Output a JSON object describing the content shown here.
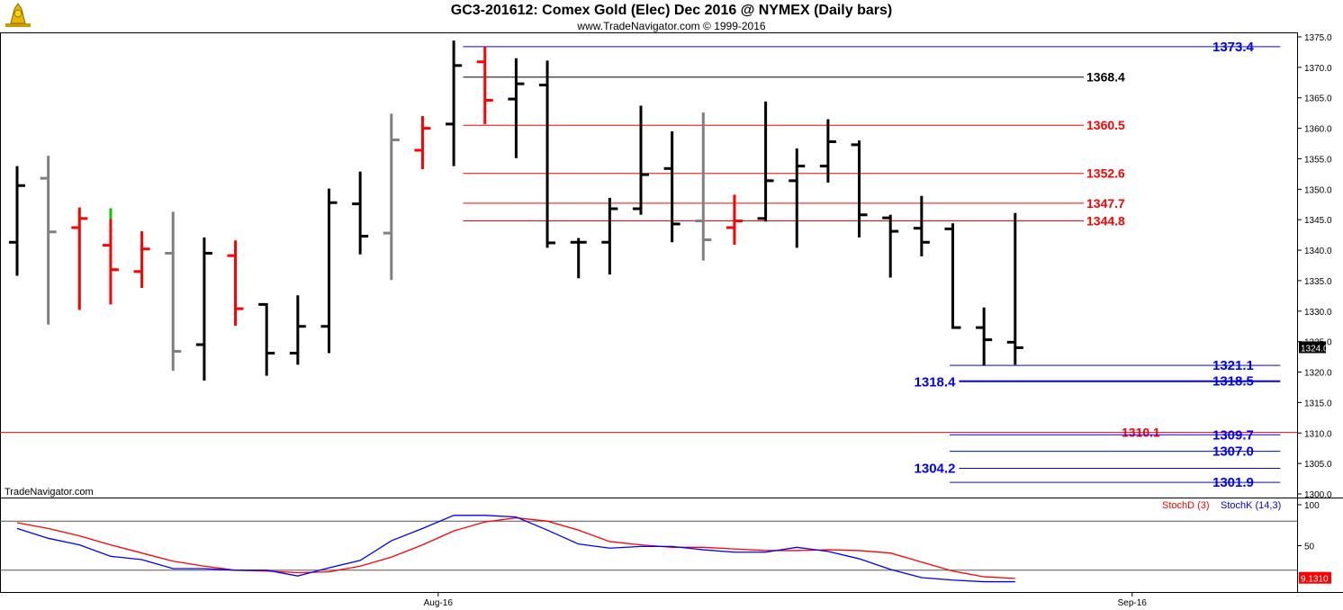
{
  "header": {
    "title": "GC3-201612:  Comex Gold (Elec) Dec 2016 @ NYMEX  (Daily bars)",
    "copyright": "www.TradeNavigator.com © 1999-2016",
    "watermark": "TradeNavigator.com"
  },
  "colors": {
    "up": "#000000",
    "down": "#ff0000",
    "neutral": "#808080",
    "support": "#0000ff",
    "resistance": "#ff0000",
    "mid": "#000000",
    "latest": "#00cc00"
  },
  "chart_data": [
    {
      "type": "bar",
      "subtype": "ohlc",
      "ylim": [
        1298,
        1376
      ],
      "yticks": [
        "1375.0",
        "1370.0",
        "1365.0",
        "1360.0",
        "1355.0",
        "1350.0",
        "1345.0",
        "1340.0",
        "1335.0",
        "1330.0",
        "1325.0",
        "1320.0",
        "1315.0",
        "1310.0",
        "1305.0",
        "1300.0"
      ],
      "xticks": [
        {
          "label": "Aug-16",
          "at": 13.5
        },
        {
          "label": "Sep-16",
          "at": 35.75
        }
      ],
      "last_price": "1324.0",
      "bars": [
        {
          "h": 1353.8,
          "l": 1335.8,
          "o": 1341.3,
          "c": 1350.6,
          "color": "black"
        },
        {
          "h": 1355.5,
          "l": 1327.8,
          "o": 1351.8,
          "c": 1343.0,
          "color": "gray"
        },
        {
          "h": 1347.0,
          "l": 1330.2,
          "o": 1343.7,
          "c": 1345.2,
          "color": "red"
        },
        {
          "h": 1345.1,
          "l": 1331.1,
          "o": 1340.8,
          "c": 1336.8,
          "color": "red",
          "latest_high": true
        },
        {
          "h": 1343.1,
          "l": 1333.8,
          "o": 1336.5,
          "c": 1340.2,
          "color": "red"
        },
        {
          "h": 1346.3,
          "l": 1320.2,
          "o": 1339.5,
          "c": 1323.4,
          "color": "gray"
        },
        {
          "h": 1342.1,
          "l": 1318.6,
          "o": 1324.5,
          "c": 1339.5,
          "color": "black"
        },
        {
          "h": 1341.6,
          "l": 1327.6,
          "o": 1339.1,
          "c": 1330.4,
          "color": "red"
        },
        {
          "h": 1331.3,
          "l": 1319.4,
          "o": 1331.1,
          "c": 1323.1,
          "color": "black"
        },
        {
          "h": 1332.6,
          "l": 1321.2,
          "o": 1323.1,
          "c": 1327.5,
          "color": "black"
        },
        {
          "h": 1350.1,
          "l": 1323.1,
          "o": 1327.5,
          "c": 1347.8,
          "color": "black"
        },
        {
          "h": 1352.9,
          "l": 1339.3,
          "o": 1347.6,
          "c": 1342.3,
          "color": "black"
        },
        {
          "h": 1362.4,
          "l": 1335.1,
          "o": 1342.8,
          "c": 1358.1,
          "color": "gray"
        },
        {
          "h": 1362.0,
          "l": 1353.3,
          "o": 1356.4,
          "c": 1360.0,
          "color": "red"
        },
        {
          "h": 1374.4,
          "l": 1353.8,
          "o": 1360.7,
          "c": 1370.3,
          "color": "black"
        },
        {
          "h": 1373.4,
          "l": 1360.7,
          "o": 1370.9,
          "c": 1364.6,
          "color": "red"
        },
        {
          "h": 1371.5,
          "l": 1355.1,
          "o": 1364.8,
          "c": 1367.3,
          "color": "black"
        },
        {
          "h": 1371.1,
          "l": 1340.4,
          "o": 1367.1,
          "c": 1341.2,
          "color": "black"
        },
        {
          "h": 1342.0,
          "l": 1335.4,
          "o": 1341.3,
          "c": 1341.3,
          "color": "black"
        },
        {
          "h": 1348.6,
          "l": 1336.0,
          "o": 1341.3,
          "c": 1346.8,
          "color": "black"
        },
        {
          "h": 1363.7,
          "l": 1345.8,
          "o": 1346.8,
          "c": 1352.4,
          "color": "black"
        },
        {
          "h": 1359.5,
          "l": 1341.3,
          "o": 1353.4,
          "c": 1344.3,
          "color": "black"
        },
        {
          "h": 1362.6,
          "l": 1338.3,
          "o": 1344.8,
          "c": 1341.7,
          "color": "gray"
        },
        {
          "h": 1349.1,
          "l": 1340.9,
          "o": 1343.7,
          "c": 1344.8,
          "color": "red"
        },
        {
          "h": 1364.4,
          "l": 1344.7,
          "o": 1345.2,
          "c": 1351.4,
          "color": "black"
        },
        {
          "h": 1356.7,
          "l": 1340.4,
          "o": 1351.4,
          "c": 1353.8,
          "color": "black"
        },
        {
          "h": 1361.5,
          "l": 1351.1,
          "o": 1353.8,
          "c": 1357.8,
          "color": "black"
        },
        {
          "h": 1358.0,
          "l": 1342.1,
          "o": 1357.3,
          "c": 1345.8,
          "color": "black"
        },
        {
          "h": 1345.8,
          "l": 1335.5,
          "o": 1345.3,
          "c": 1343.1,
          "color": "black"
        },
        {
          "h": 1348.9,
          "l": 1339.0,
          "o": 1343.6,
          "c": 1341.3,
          "color": "black"
        },
        {
          "h": 1344.4,
          "l": 1327.1,
          "o": 1343.5,
          "c": 1327.3,
          "color": "black"
        },
        {
          "h": 1330.6,
          "l": 1321.1,
          "o": 1327.3,
          "c": 1325.3,
          "color": "black"
        },
        {
          "h": 1346.1,
          "l": 1321.2,
          "o": 1324.9,
          "c": 1324.0,
          "color": "black"
        }
      ],
      "levels": [
        {
          "value": 1373.4,
          "label": "1373.4",
          "color": "blue",
          "x_from": 14.3,
          "x_to": 40.5,
          "label_at": "right"
        },
        {
          "value": 1368.4,
          "label": "1368.4",
          "color": "black",
          "x_from": 14.3,
          "x_to": 34.2,
          "label_at": "right-black"
        },
        {
          "value": 1360.5,
          "label": "1360.5",
          "color": "red",
          "x_from": 14.3,
          "x_to": 34.2,
          "label_at": "right-red"
        },
        {
          "value": 1352.6,
          "label": "1352.6",
          "color": "red",
          "x_from": 14.3,
          "x_to": 34.2,
          "label_at": "right-red"
        },
        {
          "value": 1347.7,
          "label": "1347.7",
          "color": "red",
          "x_from": 14.3,
          "x_to": 34.2,
          "label_at": "right-red"
        },
        {
          "value": 1344.8,
          "label": "1344.8",
          "color": "red",
          "x_from": 14.3,
          "x_to": 34.2,
          "label_at": "right-red"
        },
        {
          "value": 1321.1,
          "label": "1321.1",
          "color": "blue",
          "x_from": 29.9,
          "x_to": 40.5,
          "label_at": "right"
        },
        {
          "value": 1318.5,
          "label": "1318.5",
          "color": "blue",
          "x_from": 30.2,
          "x_to": 40.5,
          "label_at": "right",
          "thick": true
        },
        {
          "value": 1318.4,
          "label": "1318.4",
          "color": "blue",
          "x_from": 30.2,
          "x_to": 30.2,
          "label_at": "left"
        },
        {
          "value": 1310.1,
          "label": "1310.1",
          "color": "red",
          "x_from": -1,
          "x_to": 43,
          "label_at": "mid-red"
        },
        {
          "value": 1309.7,
          "label": "1309.7",
          "color": "blue",
          "x_from": 29.9,
          "x_to": 40.5,
          "label_at": "right"
        },
        {
          "value": 1307.0,
          "label": "1307.0",
          "color": "blue",
          "x_from": 29.9,
          "x_to": 40.5,
          "label_at": "right"
        },
        {
          "value": 1304.2,
          "label": "1304.2",
          "color": "blue",
          "x_from": 30.2,
          "x_to": 40.5,
          "label_at": "left"
        },
        {
          "value": 1301.9,
          "label": "1301.9",
          "color": "blue",
          "x_from": 29.9,
          "x_to": 40.5,
          "label_at": "right"
        }
      ]
    },
    {
      "type": "line",
      "ylim": [
        0,
        100
      ],
      "yticks": [
        "100",
        "50"
      ],
      "hlines": [
        80,
        20
      ],
      "last_value": "9.1310",
      "series": [
        {
          "name": "StochD (3)",
          "color": "#ff0000",
          "values": [
            78,
            71,
            62,
            51,
            41,
            31,
            25,
            20,
            19,
            17,
            18,
            25,
            36,
            51,
            68,
            79,
            84,
            80,
            69,
            55,
            51,
            48,
            48,
            46,
            44,
            44,
            45,
            44,
            41,
            30,
            19,
            12,
            10
          ]
        },
        {
          "name": "StochK (14,3)",
          "color": "#0000ff",
          "values": [
            71,
            59,
            51,
            37,
            33,
            22,
            22,
            20,
            20,
            13,
            23,
            32,
            56,
            71,
            87,
            87,
            85,
            69,
            52,
            47,
            49,
            49,
            45,
            42,
            42,
            48,
            43,
            34,
            21,
            11,
            8,
            6,
            6
          ]
        }
      ]
    }
  ]
}
